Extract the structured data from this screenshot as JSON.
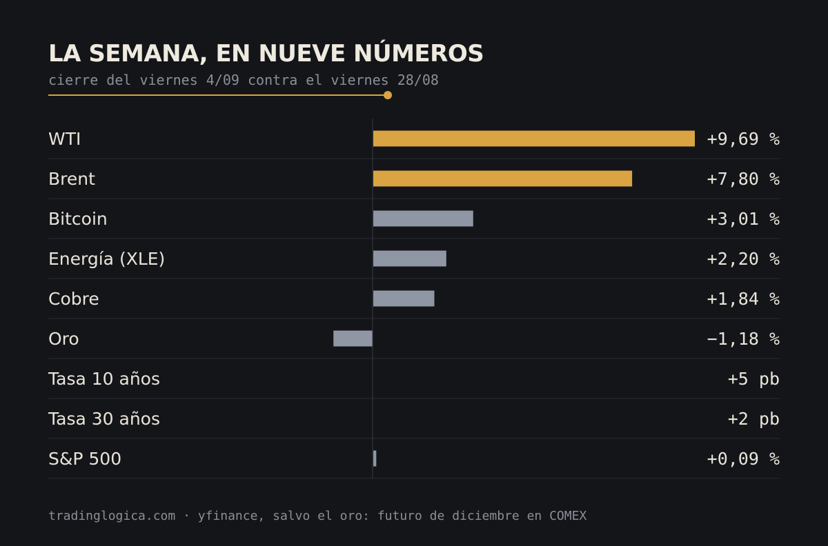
{
  "header": {
    "title": "LA SEMANA, EN NUEVE NÚMEROS",
    "subtitle": "cierre del viernes 4/09 contra el viernes 28/08"
  },
  "footer": {
    "source": "tradinglogica.com · yfinance, salvo el oro: futuro de diciembre en COMEX"
  },
  "colors": {
    "background": "#141518",
    "accent": "#d9a441",
    "neutral_bar": "#8f97a4",
    "text": "#e8e4da",
    "muted_text": "#8a8f99",
    "row_rule": "#2a2c31",
    "zero_line": "#3a3c42"
  },
  "chart_data": {
    "type": "bar",
    "orientation": "horizontal",
    "xlim": [
      -1.18,
      9.69
    ],
    "rows": [
      {
        "label": "WTI",
        "value": 9.69,
        "value_label": "+9,69 %",
        "highlight": true
      },
      {
        "label": "Brent",
        "value": 7.8,
        "value_label": "+7,80 %",
        "highlight": true
      },
      {
        "label": "Bitcoin",
        "value": 3.01,
        "value_label": "+3,01 %",
        "highlight": false
      },
      {
        "label": "Energía (XLE)",
        "value": 2.2,
        "value_label": "+2,20 %",
        "highlight": false
      },
      {
        "label": "Cobre",
        "value": 1.84,
        "value_label": "+1,84 %",
        "highlight": false
      },
      {
        "label": "Oro",
        "value": -1.18,
        "value_label": "−1,18 %",
        "highlight": false
      },
      {
        "label": "Tasa 10 años",
        "value": null,
        "value_label": "+5 pb",
        "highlight": false
      },
      {
        "label": "Tasa 30 años",
        "value": null,
        "value_label": "+2 pb",
        "highlight": false
      },
      {
        "label": "S&P 500",
        "value": 0.09,
        "value_label": "+0,09 %",
        "highlight": false
      }
    ]
  }
}
